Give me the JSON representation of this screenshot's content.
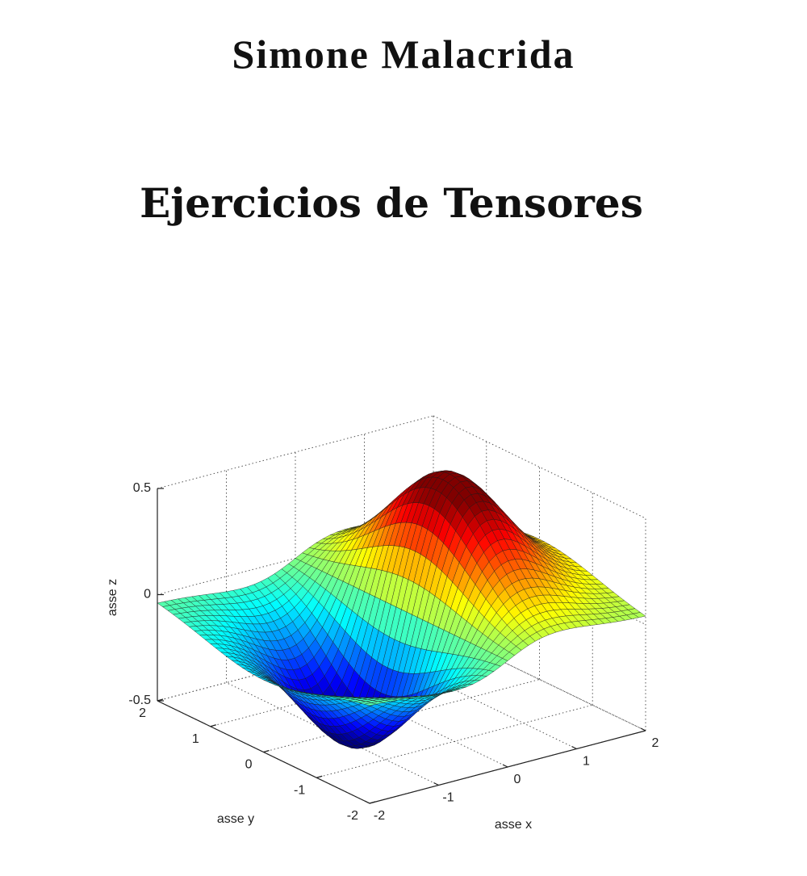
{
  "author": "Simone Malacrida",
  "title": "Ejercicios de Tensores",
  "figure": {
    "xlabel": "asse x",
    "ylabel": "asse y",
    "zlabel": "asse z",
    "xticks": [
      -2,
      -1,
      0,
      1,
      2
    ],
    "yticks": [
      -2,
      -1,
      0,
      1,
      2
    ],
    "zticks": [
      -0.5,
      0,
      0.5
    ]
  }
}
